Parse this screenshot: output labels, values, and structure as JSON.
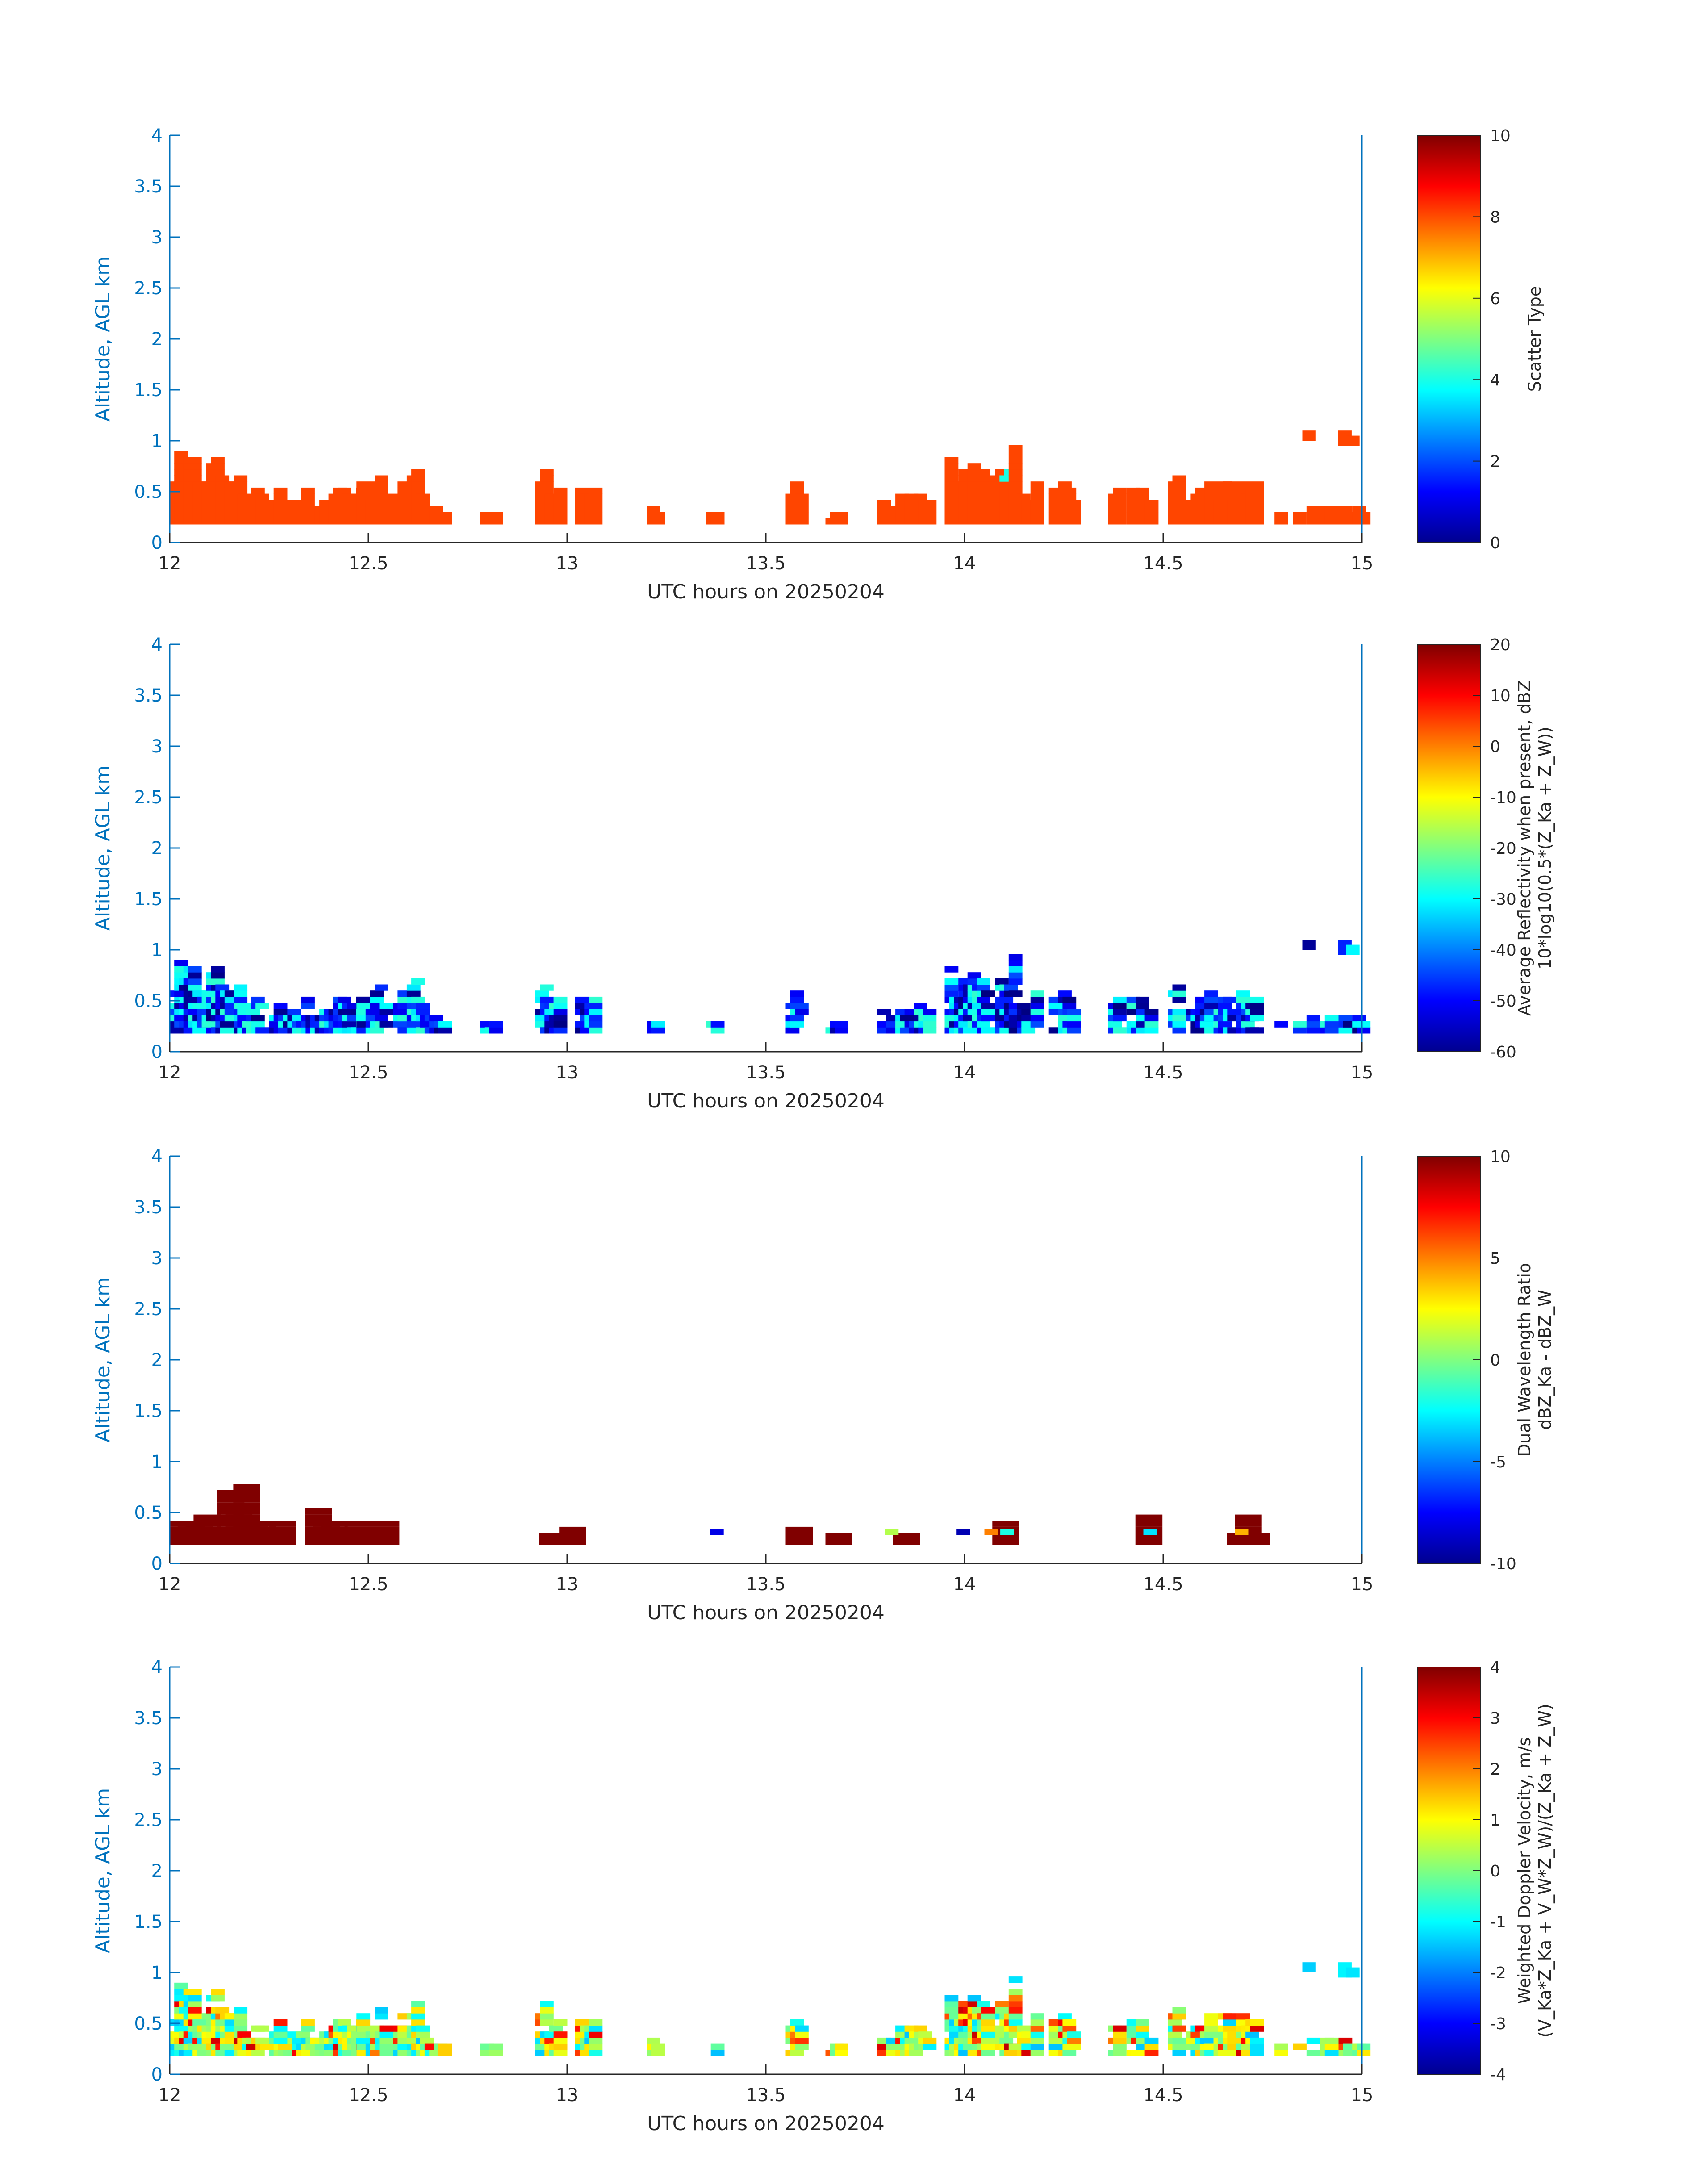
{
  "figure": {
    "xlabel": "UTC hours on 20250204",
    "ylabel": "Altitude, AGL km",
    "xticks": [
      "12",
      "12.5",
      "13",
      "13.5",
      "14",
      "14.5",
      "15"
    ],
    "yticks": [
      "0",
      "0.5",
      "1",
      "1.5",
      "2",
      "2.5",
      "3",
      "3.5",
      "4"
    ],
    "axis_color": "#0072bd",
    "colormap": "jet"
  },
  "chart_data": [
    {
      "type": "heatmap",
      "xlabel": "UTC hours on 20250204",
      "ylabel": "Altitude, AGL km",
      "xlim": [
        12,
        15
      ],
      "ylim": [
        0,
        4
      ],
      "colorbar": {
        "label_lines": [
          "Scatter Type"
        ],
        "range": [
          0,
          10
        ],
        "ticks": [
          "0",
          "2",
          "4",
          "6",
          "8",
          "10"
        ]
      },
      "dominant_value": 8.5,
      "dominant_color": "#ff4500",
      "notes_value_regions": [
        {
          "x": [
            14.08,
            14.11
          ],
          "y": [
            0.6,
            0.88
          ],
          "value": 4
        }
      ]
    },
    {
      "type": "heatmap",
      "xlabel": "UTC hours on 20250204",
      "ylabel": "Altitude, AGL km",
      "xlim": [
        12,
        15
      ],
      "ylim": [
        0,
        4
      ],
      "colorbar": {
        "label_lines": [
          "Average Reflectivity when present, dBZ",
          "10*log10(0.5*(Z_Ka + Z_W))"
        ],
        "range": [
          -60,
          20
        ],
        "ticks": [
          "-60",
          "-50",
          "-40",
          "-30",
          "-20",
          "-10",
          "0",
          "10",
          "20"
        ]
      },
      "typical_range": [
        -60,
        -30
      ]
    },
    {
      "type": "heatmap",
      "xlabel": "UTC hours on 20250204",
      "ylabel": "Altitude, AGL km",
      "xlim": [
        12,
        15
      ],
      "ylim": [
        0,
        4
      ],
      "colorbar": {
        "label_lines": [
          "Dual Wavelength Ratio",
          "dBZ_Ka - dBZ_W"
        ],
        "range": [
          -10,
          10
        ],
        "ticks": [
          "-10",
          "-5",
          "0",
          "5",
          "10"
        ]
      },
      "typical_value": 10
    },
    {
      "type": "heatmap",
      "xlabel": "UTC hours on 20250204",
      "ylabel": "Altitude, AGL km",
      "xlim": [
        12,
        15
      ],
      "ylim": [
        0,
        4
      ],
      "colorbar": {
        "label_lines": [
          "Weighted Doppler Velocity, m/s",
          "(V_Ka*Z_Ka + V_W*Z_W)/(Z_Ka + Z_W)"
        ],
        "range": [
          -4,
          4
        ],
        "ticks": [
          "-4",
          "-3",
          "-2",
          "-1",
          "0",
          "1",
          "2",
          "3",
          "4"
        ]
      },
      "typical_range": [
        -1,
        2
      ]
    }
  ]
}
